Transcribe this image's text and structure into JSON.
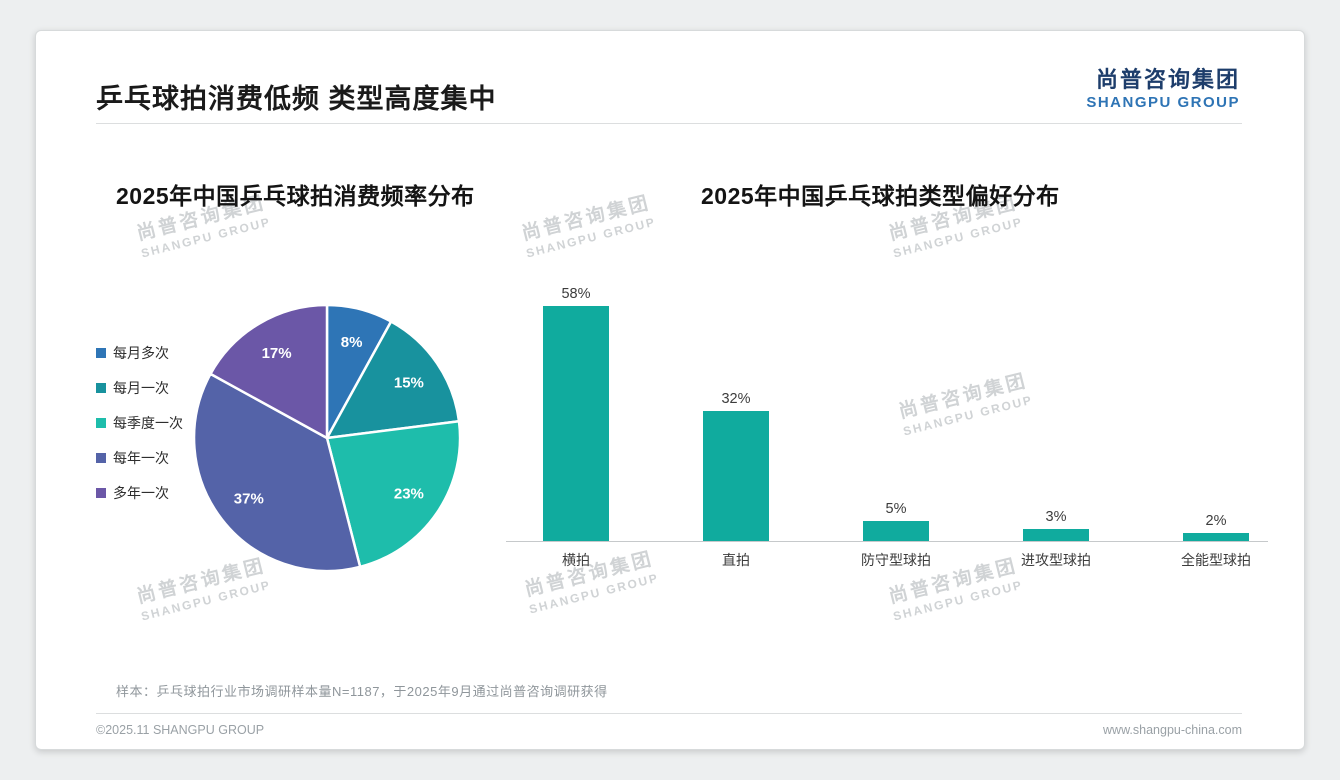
{
  "slide": {
    "title": "乒乓球拍消费低频 类型高度集中",
    "logo": {
      "cn": "尚普咨询集团",
      "en": "SHANGPU GROUP",
      "cn_color": "#1d3d6b",
      "en_color": "#2e74b5"
    },
    "watermark": {
      "cn": "尚普咨询集团",
      "en": "SHANGPU GROUP"
    },
    "footnote": "样本：乒乓球拍行业市场调研样本量N=1187，于2025年9月通过尚普咨询调研获得",
    "copyright": "©2025.11 SHANGPU GROUP",
    "website": "www.shangpu-china.com"
  },
  "chart_data": [
    {
      "type": "pie",
      "title": "2025年中国乒乓球拍消费频率分布",
      "categories": [
        "每月多次",
        "每月一次",
        "每季度一次",
        "每年一次",
        "多年一次"
      ],
      "values": [
        8,
        15,
        23,
        37,
        17
      ],
      "data_labels": [
        "8%",
        "15%",
        "23%",
        "37%",
        "17%"
      ],
      "colors": [
        "#2e75b6",
        "#18929e",
        "#1ebdab",
        "#5463a8",
        "#6b57a7"
      ],
      "legend_position": "left",
      "start_angle": "top",
      "direction": "clockwise"
    },
    {
      "type": "bar",
      "title": "2025年中国乒乓球拍类型偏好分布",
      "categories": [
        "横拍",
        "直拍",
        "防守型球拍",
        "进攻型球拍",
        "全能型球拍"
      ],
      "values": [
        58,
        32,
        5,
        3,
        2
      ],
      "data_labels": [
        "58%",
        "32%",
        "5%",
        "3%",
        "2%"
      ],
      "bar_color": "#10ab9e",
      "ylim": [
        0,
        60
      ],
      "grid": false,
      "legend": false
    }
  ]
}
